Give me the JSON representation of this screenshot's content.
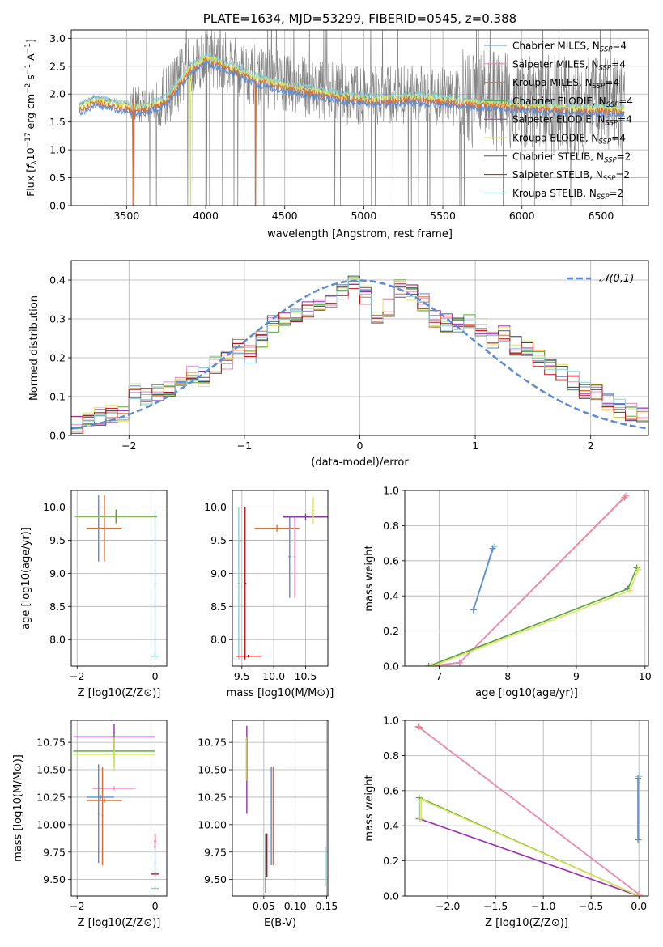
{
  "colors": {
    "chabrier_miles": "#5b8bd6",
    "salpeter_miles": "#ee88bb",
    "kroupa_miles": "#e66a2c",
    "chabrier_elodie": "#55a33a",
    "salpeter_elodie": "#9b2cb5",
    "kroupa_elodie": "#d9e65a",
    "chabrier_stelib": "#555555",
    "salpeter_stelib": "#c01010",
    "kroupa_stelib": "#88d0d8",
    "data": "#808080",
    "normal_curve": "#5b8bd6"
  },
  "chart_data": [
    {
      "id": "spectrum",
      "type": "line",
      "title": "PLATE=1634, MJD=53299, FIBERID=0545, z=0.388",
      "xlabel": "wavelength [Angstrom, rest frame]",
      "ylabel": "Flux [f_λ10^-17 erg cm^-2 s^-1 A^-1]",
      "xlim": [
        3150,
        6800
      ],
      "ylim": [
        0,
        3.15
      ],
      "xticks": [
        "3500",
        "4000",
        "4500",
        "5000",
        "5500",
        "6000",
        "6500"
      ],
      "yticks": [
        "0.0",
        "0.5",
        "1.0",
        "1.5",
        "2.0",
        "2.5",
        "3.0"
      ],
      "legend_position": "top-right",
      "legend": [
        "Chabrier MILES, N_SSP=4",
        "Salpeter MILES, N_SSP=4",
        "Kroupa MILES, N_SSP=4",
        "Chabrier ELODIE, N_SSP=4",
        "Salpeter ELODIE, N_SSP=4",
        "Kroupa ELODIE, N_SSP=4",
        "Chabrier STELIB, N_SSP=2",
        "Salpeter STELIB, N_SSP=2",
        "Kroupa STELIB, N_SSP=2"
      ],
      "continuum": [
        [
          3200,
          1.8
        ],
        [
          3300,
          1.95
        ],
        [
          3450,
          1.85
        ],
        [
          3600,
          1.8
        ],
        [
          3750,
          1.95
        ],
        [
          3900,
          2.5
        ],
        [
          4000,
          2.7
        ],
        [
          4150,
          2.55
        ],
        [
          4300,
          2.35
        ],
        [
          4500,
          2.2
        ],
        [
          4700,
          2.1
        ],
        [
          4900,
          2.0
        ],
        [
          5100,
          1.95
        ],
        [
          5300,
          2.0
        ],
        [
          5500,
          1.95
        ],
        [
          5700,
          1.9
        ],
        [
          6000,
          1.85
        ],
        [
          6300,
          1.8
        ],
        [
          6600,
          1.78
        ]
      ],
      "model_drops": [
        [
          3540,
          "kroupa_miles"
        ],
        [
          3905,
          "kroupa_elodie"
        ],
        [
          4315,
          "kroupa_miles"
        ]
      ]
    },
    {
      "id": "residuals",
      "type": "step",
      "xlabel": "(data-model)/error",
      "ylabel": "Normed distribution",
      "xlim": [
        -2.5,
        2.5
      ],
      "ylim": [
        0,
        0.45
      ],
      "xticks": [
        "−2",
        "−1",
        "0",
        "1",
        "2"
      ],
      "yticks": [
        "0.0",
        "0.1",
        "0.2",
        "0.3",
        "0.4"
      ],
      "legend_position": "top-right",
      "legend": [
        "𝒩(0,1)"
      ],
      "bin_width": 0.1,
      "base_hist": [
        0.03,
        0.04,
        0.05,
        0.055,
        0.06,
        0.11,
        0.1,
        0.11,
        0.12,
        0.14,
        0.16,
        0.15,
        0.18,
        0.19,
        0.23,
        0.21,
        0.25,
        0.29,
        0.3,
        0.3,
        0.32,
        0.33,
        0.35,
        0.37,
        0.39,
        0.36,
        0.31,
        0.33,
        0.38,
        0.37,
        0.34,
        0.3,
        0.29,
        0.29,
        0.29,
        0.28,
        0.25,
        0.26,
        0.23,
        0.22,
        0.2,
        0.18,
        0.16,
        0.14,
        0.12,
        0.11,
        0.09,
        0.07,
        0.06,
        0.05
      ]
    },
    {
      "id": "age_vs_Z",
      "type": "errorbar",
      "xlabel": "Z [log10(Z/Z⊙)]",
      "ylabel": "age  [log10(age/yr)]",
      "xlim": [
        -2.15,
        0.3
      ],
      "ylim": [
        7.6,
        10.25
      ],
      "xticks": [
        "−2",
        "0"
      ],
      "yticks": [
        "8.0",
        "8.5",
        "9.0",
        "9.5",
        "10.0"
      ],
      "points": [
        {
          "model": "chabrier_miles",
          "x": -1.45,
          "y": 9.68,
          "xerr": 0.3,
          "yerr": 0.5
        },
        {
          "model": "kroupa_miles",
          "x": -1.3,
          "y": 9.68,
          "xerr": 0.45,
          "yerr": 0.5
        },
        {
          "model": "salpeter_elodie",
          "x": -1.0,
          "y": 9.85,
          "xerr": 1.05,
          "yerr": 0.1
        },
        {
          "model": "kroupa_elodie",
          "x": -1.0,
          "y": 9.85,
          "xerr": 1.05,
          "yerr": 0.12
        },
        {
          "model": "chabrier_elodie",
          "x": -1.0,
          "y": 9.86,
          "xerr": 1.05,
          "yerr": 0.1
        },
        {
          "model": "kroupa_stelib",
          "x": 0.0,
          "y": 7.75,
          "xerr": 0.1,
          "yerr": 0.05
        },
        {
          "model": "kroupa_stelib",
          "x": 0.0,
          "y": 8.85,
          "xerr": 0.02,
          "yerr": 1.1
        }
      ]
    },
    {
      "id": "age_vs_mass",
      "type": "errorbar",
      "xlabel": "mass [log10(M/M⊙)]",
      "ylabel": "",
      "xlim": [
        9.35,
        10.85
      ],
      "ylim": [
        7.6,
        10.25
      ],
      "xticks": [
        "9.5",
        "10.0",
        "10.5"
      ],
      "yticks": [
        "8.0",
        "8.5",
        "9.0",
        "9.5",
        "10.0"
      ],
      "points": [
        {
          "model": "kroupa_miles",
          "x": 10.05,
          "y": 9.68,
          "xerr": 0.35,
          "yerr": 0.05
        },
        {
          "model": "chabrier_miles",
          "x": 10.25,
          "y": 9.25,
          "xerr": 0.02,
          "yerr": 0.62
        },
        {
          "model": "salpeter_miles",
          "x": 10.33,
          "y": 9.25,
          "xerr": 0.02,
          "yerr": 0.62
        },
        {
          "model": "salpeter_elodie",
          "x": 10.5,
          "y": 9.85,
          "xerr": 0.35,
          "yerr": 0.05
        },
        {
          "model": "kroupa_elodie",
          "x": 10.62,
          "y": 9.95,
          "xerr": 0.02,
          "yerr": 0.2
        },
        {
          "model": "kroupa_stelib",
          "x": 9.45,
          "y": 8.85,
          "xerr": 0.02,
          "yerr": 1.15
        },
        {
          "model": "salpeter_stelib",
          "x": 9.55,
          "y": 8.85,
          "xerr": 0.02,
          "yerr": 1.15
        },
        {
          "model": "salpeter_stelib",
          "x": 9.6,
          "y": 7.75,
          "xerr": 0.2,
          "yerr": 0.02
        }
      ]
    },
    {
      "id": "weight_vs_age",
      "type": "line",
      "xlabel": "age  [log10(age/yr)]",
      "ylabel": "mass weight",
      "xlim": [
        6.5,
        10.05
      ],
      "ylim": [
        0,
        1.0
      ],
      "xticks": [
        "7",
        "8",
        "9",
        "10"
      ],
      "yticks": [
        "0.0",
        "0.2",
        "0.4",
        "0.6",
        "0.8",
        "1.0"
      ],
      "series": [
        {
          "model": "kroupa_stelib",
          "x": [
            7.5,
            7.8
          ],
          "y": [
            0.32,
            0.68
          ]
        },
        {
          "model": "chabrier_miles",
          "x": [
            7.5,
            7.78
          ],
          "y": [
            0.32,
            0.67
          ]
        },
        {
          "model": "kroupa_miles",
          "x": [
            6.85,
            7.3,
            9.7
          ],
          "y": [
            0.0,
            0.02,
            0.96
          ]
        },
        {
          "model": "salpeter_miles",
          "x": [
            6.85,
            7.3,
            9.72
          ],
          "y": [
            0.0,
            0.02,
            0.97
          ]
        },
        {
          "model": "chabrier_elodie",
          "x": [
            6.85,
            9.75,
            9.88
          ],
          "y": [
            0.0,
            0.44,
            0.56
          ]
        },
        {
          "model": "kroupa_elodie",
          "x": [
            6.9,
            9.78,
            9.9
          ],
          "y": [
            0.0,
            0.43,
            0.55
          ]
        }
      ]
    },
    {
      "id": "mass_vs_Z",
      "type": "errorbar",
      "xlabel": "Z [log10(Z/Z⊙)]",
      "ylabel": "mass [log10(M/M⊙)]",
      "xlim": [
        -2.15,
        0.3
      ],
      "ylim": [
        9.35,
        10.95
      ],
      "xticks": [
        "−2",
        "0"
      ],
      "yticks": [
        "9.50",
        "9.75",
        "10.00",
        "10.25",
        "10.50",
        "10.75"
      ],
      "points": [
        {
          "model": "salpeter_elodie",
          "x": -1.05,
          "y": 10.8,
          "xerr": 1.05,
          "yerr": 0.12
        },
        {
          "model": "chabrier_elodie",
          "x": -1.05,
          "y": 10.67,
          "xerr": 1.05,
          "yerr": 0.15
        },
        {
          "model": "kroupa_elodie",
          "x": -1.05,
          "y": 10.64,
          "xerr": 1.05,
          "yerr": 0.15
        },
        {
          "model": "salpeter_miles",
          "x": -1.05,
          "y": 10.33,
          "xerr": 0.55,
          "yerr": 0.02
        },
        {
          "model": "chabrier_miles",
          "x": -1.4,
          "y": 10.25,
          "xerr": 0.35,
          "yerr": 0.02
        },
        {
          "model": "kroupa_miles",
          "x": -1.3,
          "y": 10.22,
          "xerr": 0.45,
          "yerr": 0.02
        },
        {
          "model": "chabrier_miles",
          "x": -1.45,
          "y": 10.1,
          "xerr": 0.02,
          "yerr": 0.45
        },
        {
          "model": "kroupa_miles",
          "x": -1.35,
          "y": 10.08,
          "xerr": 0.02,
          "yerr": 0.45
        },
        {
          "model": "salpeter_stelib",
          "x": 0.0,
          "y": 9.55,
          "xerr": 0.1,
          "yerr": 0.02
        },
        {
          "model": "salpeter_stelib",
          "x": 0.0,
          "y": 9.85,
          "xerr": 0.02,
          "yerr": 0.07
        },
        {
          "model": "kroupa_stelib",
          "x": 0.0,
          "y": 9.42,
          "xerr": 0.1,
          "yerr": 0.02
        },
        {
          "model": "kroupa_stelib",
          "x": 0.0,
          "y": 9.65,
          "xerr": 0.02,
          "yerr": 0.15
        }
      ]
    },
    {
      "id": "mass_vs_ebv",
      "type": "errorbar",
      "xlabel": "E(B-V)",
      "ylabel": "",
      "xlim": [
        0.0,
        0.152
      ],
      "ylim": [
        9.35,
        10.95
      ],
      "xticks": [
        "0.05",
        "0.10",
        "0.15"
      ],
      "yticks": [
        "9.50",
        "9.75",
        "10.00",
        "10.25",
        "10.50",
        "10.75"
      ],
      "points": [
        {
          "model": "salpeter_elodie",
          "x": 0.023,
          "y": 10.5,
          "xerr": 0,
          "yerr": 0.4
        },
        {
          "model": "kroupa_elodie",
          "x": 0.022,
          "y": 10.6,
          "xerr": 0,
          "yerr": 0.2
        },
        {
          "model": "chabrier_stelib",
          "x": 0.053,
          "y": 9.65,
          "xerr": 0,
          "yerr": 0.27
        },
        {
          "model": "salpeter_stelib",
          "x": 0.055,
          "y": 9.72,
          "xerr": 0,
          "yerr": 0.2
        },
        {
          "model": "chabrier_miles",
          "x": 0.062,
          "y": 10.08,
          "xerr": 0,
          "yerr": 0.45
        },
        {
          "model": "kroupa_miles",
          "x": 0.065,
          "y": 10.08,
          "xerr": 0,
          "yerr": 0.45
        },
        {
          "model": "kroupa_stelib",
          "x": 0.148,
          "y": 9.62,
          "xerr": 0,
          "yerr": 0.18
        }
      ]
    },
    {
      "id": "weight_vs_Z",
      "type": "line",
      "xlabel": "Z [log10(Z/Z⊙)]",
      "ylabel": "mass weight",
      "xlim": [
        -2.45,
        0.1
      ],
      "ylim": [
        0,
        1.0
      ],
      "xticks": [
        "−2.0",
        "−1.5",
        "−1.0",
        "−0.5",
        "0.0"
      ],
      "yticks": [
        "0.0",
        "0.2",
        "0.4",
        "0.6",
        "0.8",
        "1.0"
      ],
      "series": [
        {
          "model": "kroupa_miles",
          "x": [
            -2.3,
            0.0
          ],
          "y": [
            0.96,
            0.01
          ]
        },
        {
          "model": "salpeter_miles",
          "x": [
            -2.31,
            0.0
          ],
          "y": [
            0.965,
            0.01
          ]
        },
        {
          "model": "salpeter_elodie",
          "x": [
            -2.3,
            0.0
          ],
          "y": [
            0.44,
            0.0
          ]
        },
        {
          "model": "chabrier_elodie",
          "x": [
            -2.3,
            -2.3,
            0.0
          ],
          "y": [
            0.44,
            0.56,
            0.0
          ]
        },
        {
          "model": "kroupa_elodie",
          "x": [
            -2.28,
            -2.28,
            0.0
          ],
          "y": [
            0.44,
            0.55,
            0.0
          ]
        },
        {
          "model": "kroupa_stelib",
          "x": [
            0.0,
            0.0
          ],
          "y": [
            0.32,
            0.68
          ]
        },
        {
          "model": "chabrier_miles",
          "x": [
            -0.01,
            -0.01
          ],
          "y": [
            0.32,
            0.67
          ]
        }
      ]
    }
  ]
}
